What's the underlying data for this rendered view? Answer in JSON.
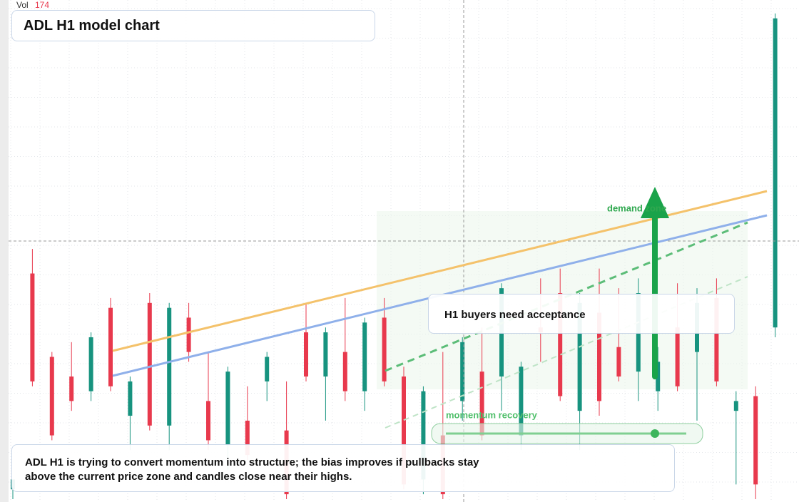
{
  "chart_data": {
    "type": "candlestick",
    "title": "ADL H1 model chart",
    "volume_label": "Vol",
    "volume": 174,
    "up_color": "#17937f",
    "down_color": "#e8394d",
    "ylim": [
      0,
      100
    ],
    "grid": true,
    "annotations": {
      "zone": "demand zone",
      "recovery": "momentum recovery",
      "callout": "H1 buyers need acceptance",
      "note": "ADL H1 is trying to convert momentum into structure; the bias improves if pullbacks stay above the current price zone and candles close near their highs."
    },
    "candles": [
      {
        "o": 2,
        "h": 4,
        "l": 0,
        "c": 4
      },
      {
        "o": 46,
        "h": 51,
        "l": 23,
        "c": 24
      },
      {
        "o": 29,
        "h": 30,
        "l": 12,
        "c": 13
      },
      {
        "o": 25,
        "h": 32,
        "l": 18,
        "c": 20
      },
      {
        "o": 22,
        "h": 34,
        "l": 20,
        "c": 33
      },
      {
        "o": 39,
        "h": 41,
        "l": 22,
        "c": 23
      },
      {
        "o": 17,
        "h": 25,
        "l": 10,
        "c": 24
      },
      {
        "o": 40,
        "h": 42,
        "l": 14,
        "c": 15
      },
      {
        "o": 15,
        "h": 40,
        "l": 10,
        "c": 39
      },
      {
        "o": 37,
        "h": 40,
        "l": 28,
        "c": 30
      },
      {
        "o": 20,
        "h": 30,
        "l": 10,
        "c": 12
      },
      {
        "o": 11,
        "h": 27,
        "l": 6,
        "c": 26
      },
      {
        "o": 16,
        "h": 23,
        "l": 8,
        "c": 9
      },
      {
        "o": 24,
        "h": 30,
        "l": 20,
        "c": 29
      },
      {
        "o": 14,
        "h": 24,
        "l": 0,
        "c": 1
      },
      {
        "o": 34,
        "h": 40,
        "l": 24,
        "c": 25
      },
      {
        "o": 25,
        "h": 35,
        "l": 16,
        "c": 34
      },
      {
        "o": 30,
        "h": 41,
        "l": 20,
        "c": 22
      },
      {
        "o": 22,
        "h": 37,
        "l": 18,
        "c": 36
      },
      {
        "o": 37,
        "h": 41,
        "l": 23,
        "c": 24
      },
      {
        "o": 25,
        "h": 27,
        "l": 2,
        "c": 3
      },
      {
        "o": 4,
        "h": 23,
        "l": 1,
        "c": 22
      },
      {
        "o": 13,
        "h": 30,
        "l": 0,
        "c": 1
      },
      {
        "o": 20,
        "h": 33,
        "l": 16,
        "c": 32
      },
      {
        "o": 26,
        "h": 35,
        "l": 12,
        "c": 13
      },
      {
        "o": 25,
        "h": 44,
        "l": 18,
        "c": 43
      },
      {
        "o": 13,
        "h": 28,
        "l": 10,
        "c": 27
      },
      {
        "o": 35,
        "h": 45,
        "l": 28,
        "c": 34
      },
      {
        "o": 42,
        "h": 47,
        "l": 20,
        "c": 21
      },
      {
        "o": 18,
        "h": 42,
        "l": 10,
        "c": 40
      },
      {
        "o": 38,
        "h": 47,
        "l": 17,
        "c": 20
      },
      {
        "o": 31,
        "h": 43,
        "l": 24,
        "c": 25
      },
      {
        "o": 26,
        "h": 45,
        "l": 20,
        "c": 42
      },
      {
        "o": 22,
        "h": 31,
        "l": 18,
        "c": 28
      },
      {
        "o": 35,
        "h": 44,
        "l": 22,
        "c": 23
      },
      {
        "o": 30,
        "h": 43,
        "l": 16,
        "c": 40
      },
      {
        "o": 41,
        "h": 45,
        "l": 23,
        "c": 24
      },
      {
        "o": 18,
        "h": 22,
        "l": 3,
        "c": 20
      },
      {
        "o": 21,
        "h": 23,
        "l": 0,
        "c": 3
      },
      {
        "o": 35,
        "h": 99,
        "l": 33,
        "c": 98
      }
    ]
  }
}
